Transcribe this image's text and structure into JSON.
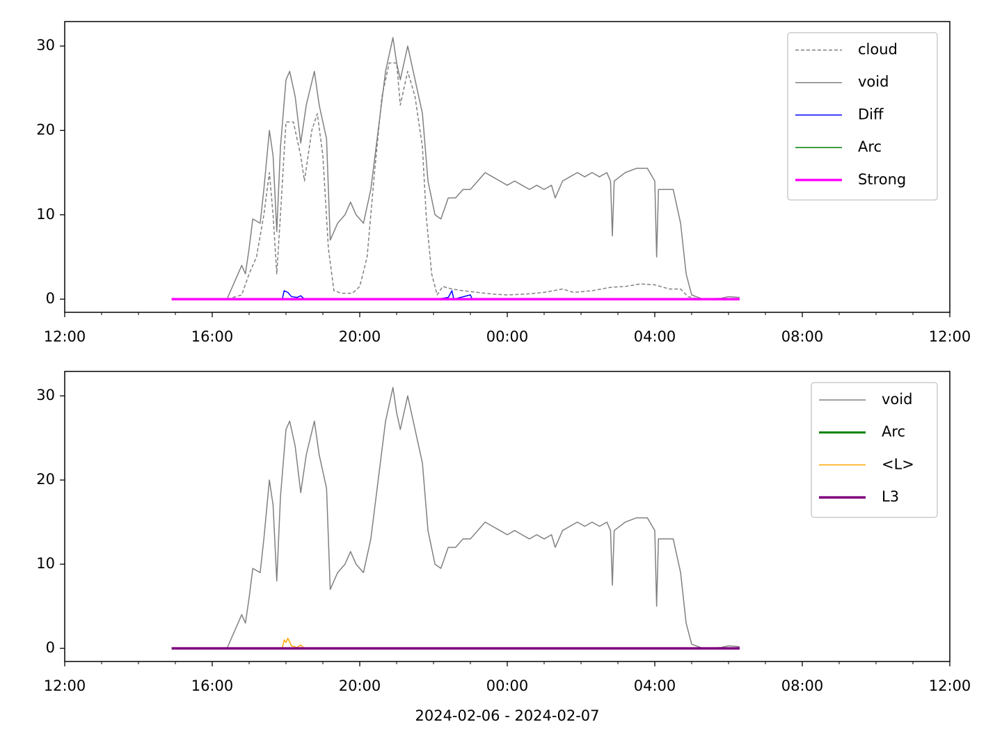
{
  "chart_data": [
    {
      "type": "line",
      "xlim": [
        12,
        36
      ],
      "ylim": [
        -1.56,
        32.9
      ],
      "xticks": [
        {
          "value": 12,
          "label": "12:00"
        },
        {
          "value": 16,
          "label": "16:00"
        },
        {
          "value": 20,
          "label": "20:00"
        },
        {
          "value": 24,
          "label": "00:00"
        },
        {
          "value": 28,
          "label": "04:00"
        },
        {
          "value": 32,
          "label": "08:00"
        },
        {
          "value": 36,
          "label": "12:00"
        }
      ],
      "xminorticks": [
        13,
        14,
        15,
        17,
        18,
        19,
        21,
        22,
        23,
        25,
        26,
        27,
        29,
        30,
        31,
        33,
        34,
        35
      ],
      "yticks": [
        0,
        10,
        20,
        30
      ],
      "legend": "upper right",
      "series": [
        {
          "name": "cloud",
          "color": "#808080",
          "linestyle": "dashed",
          "linewidth": 1.5,
          "x": [
            14.9,
            16.4,
            16.8,
            17.0,
            17.2,
            17.4,
            17.55,
            17.65,
            17.75,
            17.85,
            18.0,
            18.2,
            18.4,
            18.5,
            18.7,
            18.85,
            19.0,
            19.15,
            19.3,
            19.5,
            19.8,
            20.0,
            20.2,
            20.4,
            20.6,
            20.8,
            21.0,
            21.1,
            21.3,
            21.5,
            21.7,
            21.8,
            21.95,
            22.1,
            22.25,
            22.5,
            22.8,
            23.2,
            23.6,
            24.0,
            24.5,
            25.0,
            25.5,
            25.8,
            26.3,
            26.8,
            27.2,
            27.6,
            28.0,
            28.4,
            28.7,
            28.9,
            29.2,
            30.3
          ],
          "values": [
            0,
            0,
            0.5,
            3,
            5,
            10,
            15,
            10,
            3,
            10,
            21,
            21,
            17,
            14,
            20,
            22,
            17,
            6,
            1,
            0.7,
            0.7,
            1.5,
            5,
            15,
            24,
            28,
            28,
            23,
            27,
            24,
            18,
            10,
            3,
            0.5,
            1.5,
            1.2,
            1,
            0.8,
            0.6,
            0.5,
            0.6,
            0.8,
            1.2,
            0.8,
            1,
            1.4,
            1.5,
            1.8,
            1.7,
            1.2,
            1.2,
            0.3,
            0,
            0
          ]
        },
        {
          "name": "void",
          "color": "#808080",
          "linestyle": "solid",
          "linewidth": 1.5,
          "x": [
            14.9,
            16.4,
            16.6,
            16.8,
            16.9,
            17.0,
            17.1,
            17.3,
            17.4,
            17.55,
            17.65,
            17.75,
            17.85,
            18.0,
            18.1,
            18.25,
            18.4,
            18.55,
            18.77,
            18.9,
            19.1,
            19.2,
            19.4,
            19.6,
            19.75,
            19.9,
            20.1,
            20.3,
            20.5,
            20.7,
            20.9,
            21.0,
            21.1,
            21.3,
            21.5,
            21.7,
            21.85,
            22.04,
            22.2,
            22.4,
            22.6,
            22.8,
            23.0,
            23.2,
            23.4,
            23.6,
            23.8,
            24.0,
            24.2,
            24.4,
            24.6,
            24.8,
            25.0,
            25.2,
            25.3,
            25.5,
            25.7,
            25.9,
            26.1,
            26.3,
            26.5,
            26.7,
            26.8,
            26.85,
            26.9,
            27.2,
            27.5,
            27.8,
            28.0,
            28.05,
            28.1,
            28.3,
            28.5,
            28.7,
            28.85,
            29.0,
            29.3,
            29.8,
            30.0,
            30.3
          ],
          "values": [
            0,
            0,
            2,
            4,
            3,
            6,
            9.5,
            9,
            13,
            20,
            17,
            8,
            18,
            26,
            27,
            24,
            18.5,
            23,
            27,
            23,
            19,
            7,
            9,
            10,
            11.5,
            10,
            9,
            13,
            20,
            27,
            31,
            28,
            26,
            30,
            26,
            22,
            14,
            10,
            9.5,
            12,
            12,
            13,
            13,
            14,
            15,
            14.5,
            14,
            13.5,
            14,
            13.5,
            13,
            13.5,
            13,
            13.5,
            12,
            14,
            14.5,
            15,
            14.5,
            15,
            14.5,
            15,
            14,
            7.5,
            14,
            15,
            15.5,
            15.5,
            14,
            5,
            13,
            13,
            13,
            9,
            3,
            0.5,
            0,
            0.1,
            0.3,
            0.2
          ]
        },
        {
          "name": "Diff",
          "color": "#0000ff",
          "linestyle": "solid",
          "linewidth": 1.5,
          "x": [
            14.9,
            17.9,
            17.95,
            18.05,
            18.15,
            18.3,
            18.4,
            18.5,
            22.1,
            22.4,
            22.5,
            22.55,
            23.0,
            23.05,
            30.3
          ],
          "values": [
            0,
            0,
            1,
            0.8,
            0.3,
            0.2,
            0.4,
            0,
            0,
            0.2,
            1,
            0,
            0.5,
            0,
            0
          ]
        },
        {
          "name": "Arc",
          "color": "#008000",
          "linestyle": "solid",
          "linewidth": 1.5,
          "x": [
            14.9,
            30.3
          ],
          "values": [
            0,
            0
          ]
        },
        {
          "name": "Strong",
          "color": "#ff00ff",
          "linestyle": "solid",
          "linewidth": 3.5,
          "x": [
            14.9,
            30.3
          ],
          "values": [
            0,
            0
          ]
        }
      ]
    },
    {
      "type": "line",
      "xlim": [
        12,
        36
      ],
      "ylim": [
        -1.56,
        32.9
      ],
      "xticks": [
        {
          "value": 12,
          "label": "12:00"
        },
        {
          "value": 16,
          "label": "16:00"
        },
        {
          "value": 20,
          "label": "20:00"
        },
        {
          "value": 24,
          "label": "00:00"
        },
        {
          "value": 28,
          "label": "04:00"
        },
        {
          "value": 32,
          "label": "08:00"
        },
        {
          "value": 36,
          "label": "12:00"
        }
      ],
      "xminorticks": [
        13,
        14,
        15,
        17,
        18,
        19,
        21,
        22,
        23,
        25,
        26,
        27,
        29,
        30,
        31,
        33,
        34,
        35
      ],
      "yticks": [
        0,
        10,
        20,
        30
      ],
      "legend": "upper right",
      "xlabel": "2024-02-06 - 2024-02-07",
      "series": [
        {
          "name": "void",
          "color": "#808080",
          "linestyle": "solid",
          "linewidth": 1.5,
          "x": [
            14.9,
            16.4,
            16.6,
            16.8,
            16.9,
            17.0,
            17.1,
            17.3,
            17.4,
            17.55,
            17.65,
            17.75,
            17.85,
            18.0,
            18.1,
            18.25,
            18.4,
            18.55,
            18.77,
            18.9,
            19.1,
            19.2,
            19.4,
            19.6,
            19.75,
            19.9,
            20.1,
            20.3,
            20.5,
            20.7,
            20.9,
            21.0,
            21.1,
            21.3,
            21.5,
            21.7,
            21.85,
            22.04,
            22.2,
            22.4,
            22.6,
            22.8,
            23.0,
            23.2,
            23.4,
            23.6,
            23.8,
            24.0,
            24.2,
            24.4,
            24.6,
            24.8,
            25.0,
            25.2,
            25.3,
            25.5,
            25.7,
            25.9,
            26.1,
            26.3,
            26.5,
            26.7,
            26.8,
            26.85,
            26.9,
            27.2,
            27.5,
            27.8,
            28.0,
            28.05,
            28.1,
            28.3,
            28.5,
            28.7,
            28.85,
            29.0,
            29.3,
            29.8,
            30.0,
            30.3
          ],
          "values": [
            0,
            0,
            2,
            4,
            3,
            6,
            9.5,
            9,
            13,
            20,
            17,
            8,
            18,
            26,
            27,
            24,
            18.5,
            23,
            27,
            23,
            19,
            7,
            9,
            10,
            11.5,
            10,
            9,
            13,
            20,
            27,
            31,
            28,
            26,
            30,
            26,
            22,
            14,
            10,
            9.5,
            12,
            12,
            13,
            13,
            14,
            15,
            14.5,
            14,
            13.5,
            14,
            13.5,
            13,
            13.5,
            13,
            13.5,
            12,
            14,
            14.5,
            15,
            14.5,
            15,
            14.5,
            15,
            14,
            7.5,
            14,
            15,
            15.5,
            15.5,
            14,
            5,
            13,
            13,
            13,
            9,
            3,
            0.5,
            0,
            0.1,
            0.3,
            0.2
          ]
        },
        {
          "name": "Arc",
          "color": "#008000",
          "linestyle": "solid",
          "linewidth": 3,
          "x": [
            14.9,
            30.3
          ],
          "values": [
            0,
            0
          ]
        },
        {
          "name": "<L>",
          "color": "#ffa500",
          "linestyle": "solid",
          "linewidth": 1.5,
          "x": [
            14.9,
            17.9,
            17.95,
            18.0,
            18.05,
            18.15,
            18.3,
            18.4,
            18.5,
            30.3
          ],
          "values": [
            0,
            0,
            1,
            0.7,
            1.2,
            0.3,
            0.1,
            0.4,
            0,
            0
          ]
        },
        {
          "name": "L3",
          "color": "#800080",
          "linestyle": "solid",
          "linewidth": 3.5,
          "x": [
            14.9,
            30.3
          ],
          "values": [
            0,
            0
          ]
        }
      ]
    }
  ]
}
